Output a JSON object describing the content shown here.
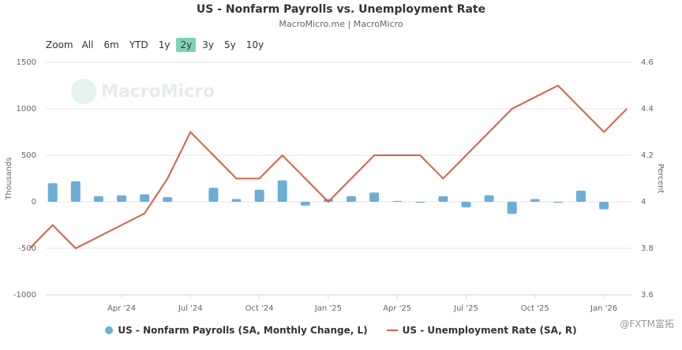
{
  "header": {
    "title": "US - Nonfarm Payrolls vs. Unemployment Rate",
    "subtitle": "MacroMicro.me | MacroMicro"
  },
  "zoom": {
    "label": "Zoom",
    "buttons": [
      "All",
      "6m",
      "YTD",
      "1y",
      "2y",
      "3y",
      "5y",
      "10y"
    ],
    "active": "2y"
  },
  "watermark": {
    "text": "MacroMicro"
  },
  "corner_mark": {
    "text": "@FXTM富拓"
  },
  "legend": {
    "bars_label": "US - Nonfarm Payrolls (SA, Monthly Change, L)",
    "line_label": "US - Unemployment Rate (SA, R)"
  },
  "colors": {
    "bars": "#6baed6",
    "line": "#d9604a",
    "active_zoom": "#7fd3b4"
  },
  "chart_data": {
    "type": "bar+line",
    "x": [
      "2024-01",
      "2024-02",
      "2024-03",
      "2024-04",
      "2024-05",
      "2024-06",
      "2024-07",
      "2024-08",
      "2024-09",
      "2024-10",
      "2024-11",
      "2024-12",
      "2025-01",
      "2025-02",
      "2025-03",
      "2025-04",
      "2025-05",
      "2025-06",
      "2025-07",
      "2025-08",
      "2025-09",
      "2025-10",
      "2025-11",
      "2025-12",
      "2026-01",
      "2026-02"
    ],
    "x_ticks": [
      "Apr '24",
      "Jul '24",
      "Oct '24",
      "Jan '25",
      "Apr '25",
      "Jul '25",
      "Oct '25",
      "Jan '26"
    ],
    "x_tick_dates": [
      "2024-04",
      "2024-07",
      "2024-10",
      "2025-01",
      "2025-04",
      "2025-07",
      "2025-10",
      "2026-01"
    ],
    "y_left": {
      "label": "Thousands",
      "range": [
        -1000,
        1500
      ],
      "ticks": [
        -1000,
        -500,
        0,
        500,
        1000,
        1500
      ]
    },
    "y_right": {
      "label": "Percent",
      "range": [
        3.6,
        4.6
      ],
      "ticks": [
        3.6,
        3.8,
        4,
        4.2,
        4.4,
        4.6
      ]
    },
    "bars": {
      "name": "US - Nonfarm Payrolls (SA, Monthly Change, L)",
      "values": [
        200,
        220,
        60,
        70,
        80,
        50,
        null,
        150,
        30,
        130,
        230,
        -40,
        30,
        60,
        100,
        10,
        -10,
        60,
        -60,
        70,
        -130,
        30,
        -10,
        120,
        -80,
        null
      ]
    },
    "line": {
      "name": "US - Unemployment Rate (SA, R)",
      "x": [
        "2023-12",
        "2024-01",
        "2024-02",
        "2024-03",
        "2024-04",
        "2024-05",
        "2024-06",
        "2024-07",
        "2024-08",
        "2024-09",
        "2024-10",
        "2024-11",
        "2024-12",
        "2025-01",
        "2025-02",
        "2025-03",
        "2025-04",
        "2025-05",
        "2025-06",
        "2025-07",
        "2025-08",
        "2025-09",
        "2025-10",
        "2025-11",
        "2025-12",
        "2026-01",
        "2026-02"
      ],
      "values": [
        3.8,
        3.9,
        3.8,
        3.85,
        3.9,
        3.95,
        4.1,
        4.3,
        4.2,
        4.1,
        4.1,
        4.2,
        4.1,
        4.0,
        4.1,
        4.2,
        4.2,
        4.2,
        4.1,
        4.2,
        4.3,
        4.4,
        4.45,
        4.5,
        4.4,
        4.3,
        4.4
      ]
    },
    "grid": true,
    "legend_position": "bottom"
  }
}
